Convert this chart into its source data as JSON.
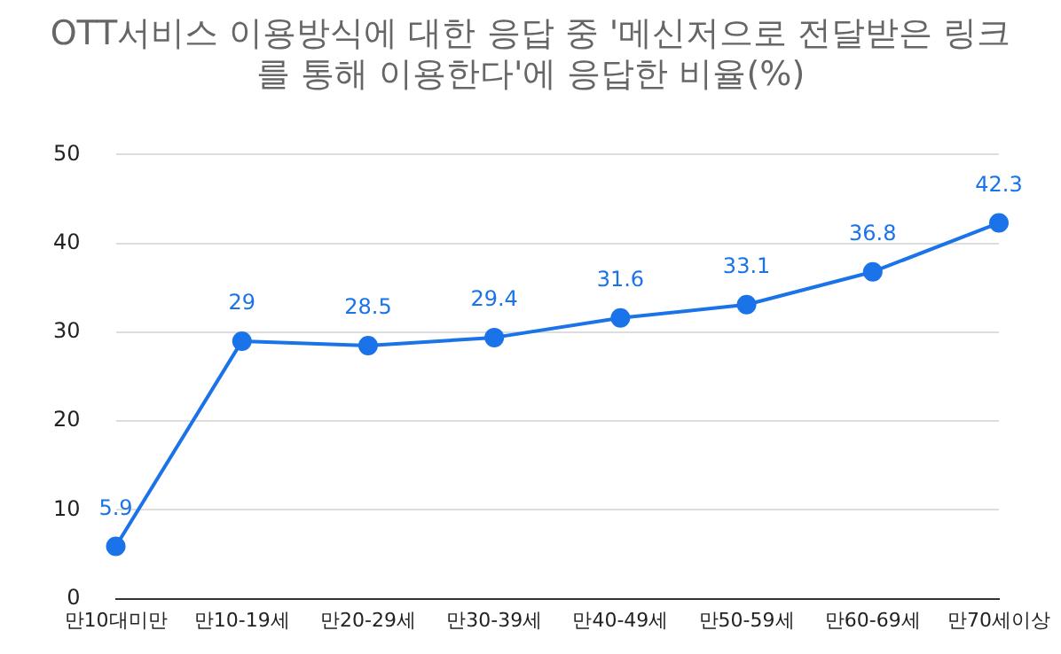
{
  "chart_data": {
    "type": "line",
    "title": "OTT서비스 이용방식에 대한 응답 중 '메신저으로 전달받은 링크를 통해 이용한다'에 응답한 비율(%)",
    "categories": [
      "만10대미만",
      "만10-19세",
      "만20-29세",
      "만30-39세",
      "만40-49세",
      "만50-59세",
      "만60-69세",
      "만70세이상"
    ],
    "series": [
      {
        "color": "#1a73e8",
        "values": [
          5.9,
          29,
          28.5,
          29.4,
          31.6,
          33.1,
          36.8,
          42.3
        ]
      }
    ],
    "ylim": [
      0,
      50
    ],
    "yticks": [
      0,
      10,
      20,
      30,
      40,
      50
    ],
    "grid": "y",
    "legend": false,
    "marker": "circle",
    "line_style": "solid",
    "data_labels": true
  }
}
